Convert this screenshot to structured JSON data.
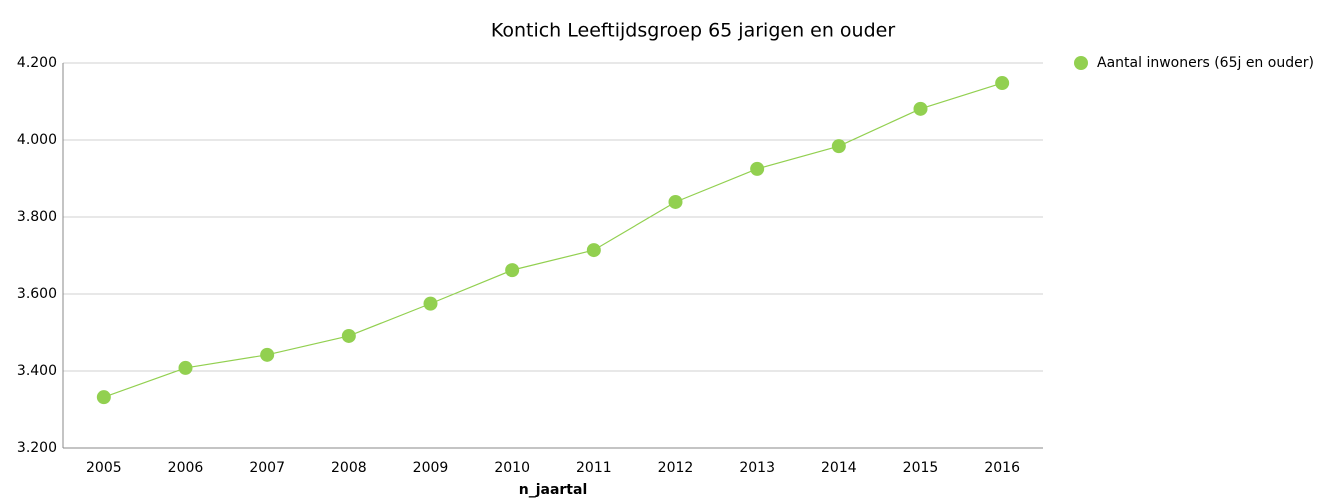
{
  "chart_data": {
    "type": "line",
    "title": "Kontich  Leeftijdsgroep 65 jarigen en ouder",
    "x_label": "n_jaartal",
    "categories": [
      "2005",
      "2006",
      "2007",
      "2008",
      "2009",
      "2010",
      "2011",
      "2012",
      "2013",
      "2014",
      "2015",
      "2016"
    ],
    "series": [
      {
        "name": "Aantal inwoners (65j en ouder)",
        "color": "#92d050",
        "values": [
          3332,
          3408,
          3442,
          3491,
          3575,
          3662,
          3714,
          3839,
          3925,
          3984,
          4081,
          4148
        ]
      }
    ],
    "ylim": [
      3200,
      4200
    ],
    "yticks": [
      {
        "value": 3200,
        "label": "3.200"
      },
      {
        "value": 3400,
        "label": "3.400"
      },
      {
        "value": 3600,
        "label": "3.600"
      },
      {
        "value": 3800,
        "label": "3.800"
      },
      {
        "value": 4000,
        "label": "4.000"
      },
      {
        "value": 4200,
        "label": "4.200"
      }
    ],
    "grid": true,
    "legend": "top-right"
  }
}
